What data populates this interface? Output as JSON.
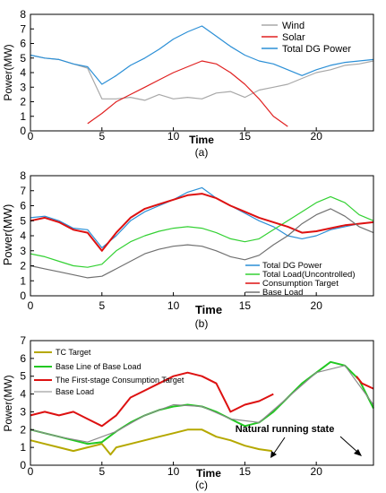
{
  "chart_data": [
    {
      "panel": "(a)",
      "type": "line",
      "xlabel": "Time",
      "ylabel": "Power(MW)",
      "xlim": [
        0,
        24
      ],
      "ylim": [
        0,
        8
      ],
      "x_ticks": [
        "0",
        "5",
        "10",
        "15",
        "20"
      ],
      "y_ticks": [
        "0",
        "1",
        "2",
        "3",
        "4",
        "5",
        "6",
        "7",
        "8"
      ],
      "grid": false,
      "legend": "top-right",
      "series": [
        {
          "name": "Wind",
          "color": "#a8a8a8",
          "x": [
            0,
            1,
            2,
            3,
            4,
            5,
            6,
            7,
            8,
            9,
            10,
            11,
            12,
            13,
            14,
            15,
            16,
            17,
            18,
            19,
            20,
            21,
            22,
            23,
            24
          ],
          "values": [
            5.2,
            5.0,
            4.9,
            4.6,
            4.3,
            2.2,
            2.2,
            2.3,
            2.1,
            2.5,
            2.2,
            2.3,
            2.2,
            2.6,
            2.7,
            2.3,
            2.8,
            3.0,
            3.2,
            3.6,
            4.0,
            4.2,
            4.5,
            4.6,
            4.8
          ]
        },
        {
          "name": "Solar",
          "color": "#e02020",
          "x": [
            4,
            5,
            6,
            7,
            8,
            9,
            10,
            11,
            12,
            13,
            14,
            15,
            16,
            17,
            18
          ],
          "values": [
            0.5,
            1.2,
            2.0,
            2.5,
            3.0,
            3.5,
            4.0,
            4.4,
            4.8,
            4.6,
            4.0,
            3.2,
            2.2,
            1.0,
            0.3
          ]
        },
        {
          "name": "Total DG Power",
          "color": "#2b8fd6",
          "x": [
            0,
            1,
            2,
            3,
            4,
            5,
            6,
            7,
            8,
            9,
            10,
            11,
            12,
            13,
            14,
            15,
            16,
            17,
            18,
            19,
            20,
            21,
            22,
            23,
            24
          ],
          "values": [
            5.2,
            5.0,
            4.9,
            4.6,
            4.4,
            3.2,
            3.8,
            4.5,
            5.0,
            5.6,
            6.3,
            6.8,
            7.2,
            6.5,
            5.8,
            5.2,
            4.8,
            4.6,
            4.2,
            3.8,
            4.2,
            4.5,
            4.7,
            4.8,
            4.9
          ]
        }
      ],
      "caption": "(a)"
    },
    {
      "panel": "(b)",
      "type": "line",
      "xlabel": "Time",
      "ylabel": "Power(MW)",
      "xlim": [
        0,
        24
      ],
      "ylim": [
        0,
        8
      ],
      "x_ticks": [
        "0",
        "5",
        "10",
        "15",
        "20"
      ],
      "y_ticks": [
        "0",
        "1",
        "2",
        "3",
        "4",
        "5",
        "6",
        "7",
        "8"
      ],
      "grid": false,
      "legend": "bottom-right",
      "series": [
        {
          "name": "Total DG Power",
          "color": "#2b8fd6",
          "x": [
            0,
            1,
            2,
            3,
            4,
            5,
            6,
            7,
            8,
            9,
            10,
            11,
            12,
            13,
            14,
            15,
            16,
            17,
            18,
            19,
            20,
            21,
            22,
            23,
            24
          ],
          "values": [
            5.2,
            5.3,
            5.0,
            4.5,
            4.4,
            3.2,
            4.0,
            5.0,
            5.6,
            6.0,
            6.4,
            6.9,
            7.2,
            6.5,
            6.0,
            5.5,
            5.0,
            4.6,
            4.0,
            3.8,
            4.0,
            4.4,
            4.6,
            4.8,
            4.9
          ]
        },
        {
          "name": "Total Load(Uncontrolled)",
          "color": "#33d133",
          "x": [
            0,
            1,
            2,
            3,
            4,
            5,
            6,
            7,
            8,
            9,
            10,
            11,
            12,
            13,
            14,
            15,
            16,
            17,
            18,
            19,
            20,
            21,
            22,
            23,
            24
          ],
          "values": [
            2.8,
            2.6,
            2.3,
            2.0,
            1.9,
            2.1,
            3.0,
            3.6,
            4.0,
            4.3,
            4.5,
            4.6,
            4.5,
            4.2,
            3.8,
            3.6,
            3.8,
            4.4,
            5.0,
            5.6,
            6.2,
            6.6,
            6.2,
            5.4,
            5.0
          ]
        },
        {
          "name": "Consumption Target",
          "color": "#dd1111",
          "x": [
            0,
            1,
            2,
            3,
            4,
            5,
            6,
            7,
            8,
            9,
            10,
            11,
            12,
            13,
            14,
            15,
            16,
            17,
            18,
            19,
            20,
            21,
            22,
            23,
            24
          ],
          "values": [
            5.0,
            5.2,
            4.9,
            4.4,
            4.2,
            3.0,
            4.2,
            5.2,
            5.8,
            6.1,
            6.4,
            6.7,
            6.8,
            6.5,
            6.0,
            5.6,
            5.2,
            4.9,
            4.6,
            4.2,
            4.3,
            4.5,
            4.7,
            4.8,
            4.9
          ]
        },
        {
          "name": "Base Load",
          "color": "#707070",
          "x": [
            0,
            1,
            2,
            3,
            4,
            5,
            6,
            7,
            8,
            9,
            10,
            11,
            12,
            13,
            14,
            15,
            16,
            17,
            18,
            19,
            20,
            21,
            22,
            23,
            24
          ],
          "values": [
            2.0,
            1.8,
            1.6,
            1.4,
            1.2,
            1.3,
            1.8,
            2.3,
            2.8,
            3.1,
            3.3,
            3.4,
            3.3,
            3.0,
            2.6,
            2.4,
            2.7,
            3.4,
            4.0,
            4.8,
            5.4,
            5.8,
            5.3,
            4.6,
            4.2
          ]
        }
      ],
      "caption": "(b)"
    },
    {
      "panel": "(c)",
      "type": "line",
      "xlabel": "Time",
      "ylabel": "Power(MW)",
      "xlim": [
        0,
        24
      ],
      "ylim": [
        0,
        7
      ],
      "x_ticks": [
        "0",
        "5",
        "10",
        "15",
        "20"
      ],
      "y_ticks": [
        "0",
        "1",
        "2",
        "3",
        "4",
        "5",
        "6",
        "7"
      ],
      "grid": false,
      "legend": "top-left",
      "series": [
        {
          "name": "TC Target",
          "color": "#b5a800",
          "x": [
            0,
            1,
            2,
            3,
            4,
            5,
            5.6,
            6,
            7,
            8,
            9,
            10,
            11,
            12,
            13,
            14,
            15,
            16,
            16.9
          ],
          "values": [
            1.4,
            1.2,
            1.0,
            0.8,
            1.0,
            1.2,
            0.6,
            1.0,
            1.2,
            1.4,
            1.6,
            1.8,
            2.0,
            2.0,
            1.6,
            1.4,
            1.1,
            0.9,
            0.8
          ]
        },
        {
          "name": "Base Line of Base Load",
          "color": "#22c822",
          "x": [
            0,
            1,
            2,
            3,
            4,
            5,
            6,
            7,
            8,
            9,
            10,
            11,
            12,
            13,
            14,
            15,
            16,
            17,
            18,
            19,
            20,
            21,
            22,
            23,
            24
          ],
          "values": [
            2.0,
            1.8,
            1.6,
            1.4,
            1.2,
            1.3,
            1.9,
            2.4,
            2.8,
            3.1,
            3.3,
            3.4,
            3.3,
            3.0,
            2.6,
            2.2,
            2.4,
            3.0,
            3.8,
            4.6,
            5.2,
            5.8,
            5.6,
            4.8,
            3.2
          ]
        },
        {
          "name": "The First-stage Consumption Target",
          "color": "#dd1111",
          "x": [
            0,
            1,
            2,
            3,
            4,
            5,
            6,
            7,
            8,
            9,
            10,
            11,
            12,
            13,
            14,
            15,
            16,
            17,
            22.8,
            23.2,
            24
          ],
          "values": [
            2.8,
            3.0,
            2.8,
            3.0,
            2.6,
            2.2,
            2.8,
            3.8,
            4.2,
            4.6,
            5.0,
            5.2,
            5.0,
            4.6,
            3.0,
            3.4,
            3.6,
            4.0,
            5.0,
            4.6,
            4.3
          ]
        },
        {
          "name": "Base Load",
          "color": "#8a8a8a",
          "x": [
            0,
            2,
            4,
            6,
            8,
            10,
            12,
            14,
            16,
            18,
            20,
            22,
            24
          ],
          "values": [
            2.0,
            1.6,
            1.3,
            1.9,
            2.8,
            3.4,
            3.3,
            2.6,
            2.4,
            3.8,
            5.2,
            5.6,
            3.4
          ]
        }
      ],
      "annotations": [
        "Natural running state",
        "Natural running state"
      ],
      "caption": "(c)"
    }
  ]
}
